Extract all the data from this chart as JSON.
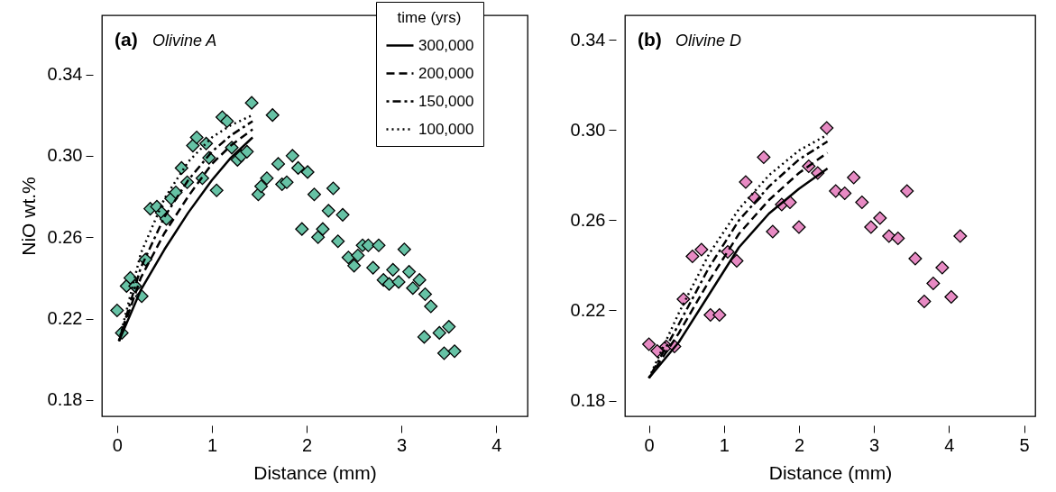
{
  "chart_data": [
    {
      "type": "scatter",
      "title": "(a) Olivine A",
      "xlabel": "Distance (mm)",
      "ylabel": "NiO wt.%",
      "legend_title": "time (yrs)",
      "legend": "top right",
      "grid": false,
      "xlim": [
        -0.16,
        4.33
      ],
      "xticks": [
        0,
        1,
        2,
        3,
        4
      ],
      "ylim": [
        0.172,
        0.369
      ],
      "yticks": [
        0.18,
        0.22,
        0.26,
        {
          "value": 0.3,
          "label": "0.30"
        },
        0.34
      ],
      "series": [
        {
          "type": "scatter",
          "marker": "diamond",
          "color": "#66c2a5",
          "x": [
            0.0,
            0.05,
            0.1,
            0.14,
            0.19,
            0.26,
            0.3,
            0.35,
            0.42,
            0.47,
            0.52,
            0.57,
            0.62,
            0.68,
            0.74,
            0.8,
            0.84,
            0.9,
            0.94,
            0.97,
            1.05,
            1.11,
            1.16,
            1.21,
            1.27,
            1.31,
            1.37,
            1.42,
            1.49,
            1.52,
            1.58,
            1.64,
            1.7,
            1.74,
            1.79,
            1.85,
            1.91,
            1.95,
            2.01,
            2.08,
            2.12,
            2.17,
            2.23,
            2.28,
            2.33,
            2.38,
            2.44,
            2.5,
            2.54,
            2.59,
            2.65,
            2.7,
            2.76,
            2.81,
            2.87,
            2.91,
            2.97,
            3.03,
            3.08,
            3.12,
            3.19,
            3.25,
            3.24,
            3.31,
            3.4,
            3.45,
            3.5,
            3.56
          ],
          "values": [
            0.224,
            0.213,
            0.236,
            0.24,
            0.236,
            0.231,
            0.249,
            0.274,
            0.275,
            0.272,
            0.269,
            0.279,
            0.282,
            0.294,
            0.287,
            0.305,
            0.309,
            0.289,
            0.306,
            0.299,
            0.283,
            0.319,
            0.317,
            0.304,
            0.298,
            0.3,
            0.302,
            0.326,
            0.281,
            0.285,
            0.289,
            0.32,
            0.296,
            0.286,
            0.287,
            0.3,
            0.294,
            0.264,
            0.292,
            0.281,
            0.26,
            0.264,
            0.273,
            0.284,
            0.258,
            0.271,
            0.25,
            0.246,
            0.251,
            0.256,
            0.256,
            0.245,
            0.256,
            0.239,
            0.237,
            0.244,
            0.238,
            0.254,
            0.243,
            0.235,
            0.239,
            0.232,
            0.211,
            0.226,
            0.213,
            0.203,
            0.216,
            0.204
          ]
        },
        {
          "type": "line",
          "name": "300,000",
          "color": "#000000",
          "line_style": "solid",
          "x": [
            0.02,
            0.25,
            0.5,
            0.75,
            1.0,
            1.2,
            1.43
          ],
          "values": [
            0.209,
            0.234,
            0.254,
            0.272,
            0.288,
            0.299,
            0.309
          ]
        },
        {
          "type": "line",
          "name": "200,000",
          "color": "#000000",
          "line_style": "dashed",
          "x": [
            0.02,
            0.25,
            0.5,
            0.75,
            1.0,
            1.2,
            1.43
          ],
          "values": [
            0.209,
            0.24,
            0.262,
            0.28,
            0.296,
            0.305,
            0.313
          ]
        },
        {
          "type": "line",
          "name": "150,000",
          "color": "#000000",
          "line_style": "dashdot",
          "x": [
            0.02,
            0.25,
            0.5,
            0.75,
            1.0,
            1.2,
            1.43
          ],
          "values": [
            0.209,
            0.245,
            0.27,
            0.288,
            0.302,
            0.31,
            0.317
          ]
        },
        {
          "type": "line",
          "name": "100,000",
          "color": "#000000",
          "line_style": "dotted",
          "x": [
            0.02,
            0.25,
            0.5,
            0.75,
            1.0,
            1.2,
            1.43
          ],
          "values": [
            0.209,
            0.252,
            0.279,
            0.297,
            0.309,
            0.315,
            0.32
          ]
        }
      ]
    },
    {
      "type": "scatter",
      "title": "(b) Olivine D",
      "xlabel": "Distance (mm)",
      "grid": false,
      "xlim": [
        -0.32,
        5.15
      ],
      "xticks": [
        0,
        1,
        2,
        3,
        4,
        5
      ],
      "ylim": [
        0.173,
        0.351
      ],
      "yticks": [
        0.18,
        0.22,
        0.26,
        {
          "value": 0.3,
          "label": "0.30"
        },
        0.34
      ],
      "series": [
        {
          "type": "scatter",
          "marker": "diamond",
          "color": "#e78ac3",
          "x": [
            0.0,
            0.11,
            0.23,
            0.34,
            0.46,
            0.58,
            0.7,
            0.82,
            0.94,
            1.05,
            1.17,
            1.29,
            1.41,
            1.53,
            1.65,
            1.77,
            1.88,
            2.0,
            2.13,
            2.25,
            2.37,
            2.49,
            2.61,
            2.73,
            2.84,
            2.96,
            3.08,
            3.2,
            3.32,
            3.44,
            3.55,
            3.67,
            3.79,
            3.91,
            4.03,
            4.15
          ],
          "values": [
            0.205,
            0.202,
            0.204,
            0.204,
            0.225,
            0.244,
            0.247,
            0.218,
            0.218,
            0.246,
            0.242,
            0.277,
            0.27,
            0.288,
            0.255,
            0.267,
            0.268,
            0.257,
            0.284,
            0.281,
            0.301,
            0.273,
            0.272,
            0.279,
            0.268,
            0.257,
            0.261,
            0.253,
            0.252,
            0.273,
            0.243,
            0.224,
            0.232,
            0.239,
            0.226,
            0.253
          ]
        },
        {
          "type": "line",
          "color": "#000000",
          "line_style": "solid",
          "x": [
            0,
            0.4,
            0.8,
            1.2,
            1.6,
            2.0,
            2.38
          ],
          "values": [
            0.19,
            0.206,
            0.227,
            0.248,
            0.263,
            0.274,
            0.283
          ]
        },
        {
          "type": "line",
          "color": "#000000",
          "line_style": "dashed",
          "x": [
            0,
            0.4,
            0.8,
            1.2,
            1.6,
            2.0,
            2.38
          ],
          "values": [
            0.19,
            0.21,
            0.233,
            0.254,
            0.269,
            0.281,
            0.29
          ]
        },
        {
          "type": "line",
          "color": "#000000",
          "line_style": "dashdot",
          "x": [
            0,
            0.4,
            0.8,
            1.2,
            1.6,
            2.0,
            2.38
          ],
          "values": [
            0.19,
            0.214,
            0.239,
            0.26,
            0.275,
            0.287,
            0.295
          ]
        },
        {
          "type": "line",
          "color": "#000000",
          "line_style": "dotted",
          "x": [
            0,
            0.4,
            0.8,
            1.2,
            1.6,
            2.0,
            2.38
          ],
          "values": [
            0.19,
            0.219,
            0.245,
            0.265,
            0.28,
            0.291,
            0.298
          ]
        }
      ]
    }
  ]
}
